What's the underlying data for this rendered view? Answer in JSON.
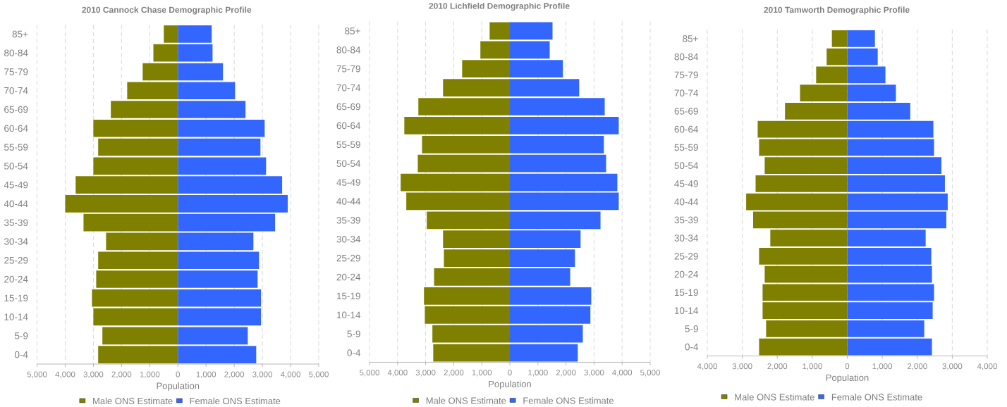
{
  "chart_data": [
    {
      "type": "bar",
      "orientation": "horizontal",
      "stacked": true,
      "title": "2010 Cannock Chase Demographic Profile",
      "xlabel": "Population",
      "categories": [
        "85+",
        "80-84",
        "75-79",
        "70-74",
        "65-69",
        "60-64",
        "55-59",
        "50-54",
        "45-49",
        "40-44",
        "35-39",
        "30-34",
        "25-29",
        "20-24",
        "15-19",
        "10-14",
        "5-9",
        "0-4"
      ],
      "series": [
        {
          "name": "Male ONS Estimate",
          "color": "#808000",
          "values": [
            -500,
            -870,
            -1250,
            -1800,
            -2380,
            -3000,
            -2830,
            -3000,
            -3630,
            -4000,
            -3350,
            -2550,
            -2830,
            -2900,
            -3050,
            -3000,
            -2680,
            -2830
          ]
        },
        {
          "name": "Female ONS Estimate",
          "color": "#3366ff",
          "values": [
            1200,
            1230,
            1600,
            2030,
            2400,
            3080,
            2930,
            3130,
            3700,
            3900,
            3450,
            2680,
            2880,
            2830,
            2950,
            2950,
            2480,
            2780
          ]
        }
      ],
      "xlim": [
        -5000,
        5000
      ],
      "xticks": [
        {
          "value": -5000,
          "label": "5,000"
        },
        {
          "value": -4000,
          "label": "4,000"
        },
        {
          "value": -3000,
          "label": "3,000"
        },
        {
          "value": -2000,
          "label": "2,000"
        },
        {
          "value": -1000,
          "label": "1,000"
        },
        0,
        {
          "value": 1000,
          "label": "1,000"
        },
        {
          "value": 2000,
          "label": "2,000"
        },
        {
          "value": 3000,
          "label": "3,000"
        },
        {
          "value": 4000,
          "label": "4,000"
        },
        {
          "value": 5000,
          "label": "5,000"
        }
      ],
      "grid": "x",
      "legend": "bottom"
    },
    {
      "type": "bar",
      "orientation": "horizontal",
      "stacked": true,
      "title": "2010 Lichfield Demographic Profile",
      "xlabel": "Population",
      "categories": [
        "85+",
        "80-84",
        "75-79",
        "70-74",
        "65-69",
        "60-64",
        "55-59",
        "50-54",
        "45-49",
        "40-44",
        "35-39",
        "30-34",
        "25-29",
        "20-24",
        "15-19",
        "10-14",
        "5-9",
        "0-4"
      ],
      "series": [
        {
          "name": "Male ONS Estimate",
          "color": "#808000",
          "values": [
            -720,
            -1050,
            -1700,
            -2380,
            -3260,
            -3760,
            -3130,
            -3280,
            -3890,
            -3690,
            -2960,
            -2380,
            -2350,
            -2700,
            -3060,
            -3030,
            -2760,
            -2730
          ]
        },
        {
          "name": "Female ONS Estimate",
          "color": "#3366ff",
          "values": [
            1520,
            1420,
            1890,
            2470,
            3380,
            3880,
            3350,
            3430,
            3830,
            3880,
            3230,
            2520,
            2320,
            2150,
            2900,
            2870,
            2600,
            2420
          ]
        }
      ],
      "xlim": [
        -5000,
        5000
      ],
      "xticks": [
        {
          "value": -5000,
          "label": "5,000"
        },
        {
          "value": -4000,
          "label": "4,000"
        },
        {
          "value": -3000,
          "label": "3,000"
        },
        {
          "value": -2000,
          "label": "2,000"
        },
        {
          "value": -1000,
          "label": "1,000"
        },
        0,
        {
          "value": 1000,
          "label": "1,000"
        },
        {
          "value": 2000,
          "label": "2,000"
        },
        {
          "value": 3000,
          "label": "3,000"
        },
        {
          "value": 4000,
          "label": "4,000"
        },
        {
          "value": 5000,
          "label": "5,000"
        }
      ],
      "grid": "x",
      "legend": "bottom"
    },
    {
      "type": "bar",
      "orientation": "horizontal",
      "stacked": true,
      "title": "2010 Tamworth Demographic Profile",
      "xlabel": "Population",
      "categories": [
        "85+",
        "80-84",
        "75-79",
        "70-74",
        "65-69",
        "60-64",
        "55-59",
        "50-54",
        "45-49",
        "40-44",
        "35-39",
        "30-34",
        "25-29",
        "20-24",
        "15-19",
        "10-14",
        "5-9",
        "0-4"
      ],
      "series": [
        {
          "name": "Male ONS Estimate",
          "color": "#808000",
          "values": [
            -440,
            -590,
            -890,
            -1350,
            -1780,
            -2560,
            -2520,
            -2360,
            -2620,
            -2890,
            -2690,
            -2200,
            -2520,
            -2360,
            -2420,
            -2420,
            -2320,
            -2520
          ]
        },
        {
          "name": "Female ONS Estimate",
          "color": "#3366ff",
          "values": [
            790,
            870,
            1090,
            1390,
            1800,
            2460,
            2480,
            2690,
            2790,
            2870,
            2830,
            2240,
            2400,
            2420,
            2480,
            2440,
            2200,
            2420
          ]
        }
      ],
      "xlim": [
        -4000,
        4000
      ],
      "xticks": [
        {
          "value": -4000,
          "label": "4,000"
        },
        {
          "value": -3000,
          "label": "3,000"
        },
        {
          "value": -2000,
          "label": "2,000"
        },
        {
          "value": -1000,
          "label": "1,000"
        },
        0,
        {
          "value": 1000,
          "label": "1,000"
        },
        {
          "value": 2000,
          "label": "2,000"
        },
        {
          "value": 3000,
          "label": "3,000"
        },
        {
          "value": 4000,
          "label": "4,000"
        }
      ],
      "grid": "x",
      "legend": "bottom"
    }
  ]
}
